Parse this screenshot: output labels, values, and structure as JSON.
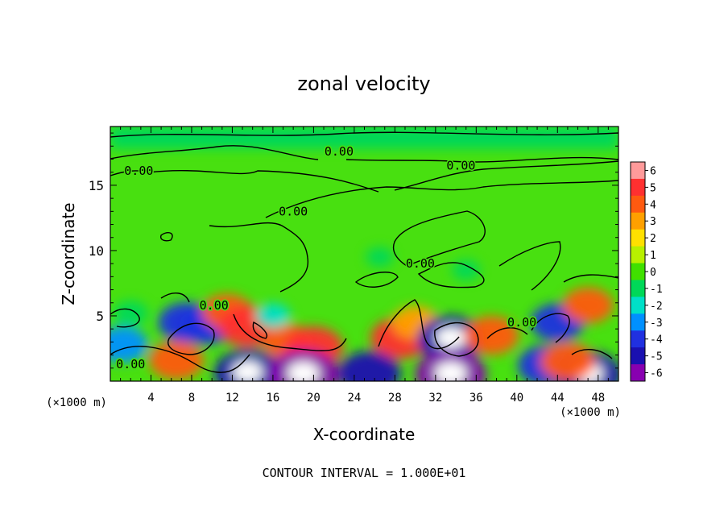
{
  "chart_data": {
    "type": "heatmap",
    "title": "zonal velocity",
    "xlabel": "X-coordinate",
    "ylabel": "Z-coordinate",
    "x_unit_left": "(×1000 m)",
    "x_unit_right": "(×1000 m)",
    "footer": "CONTOUR INTERVAL = 1.000E+01",
    "xlim": [
      0,
      50
    ],
    "ylim": [
      0,
      19.5
    ],
    "x_ticks": [
      4,
      8,
      12,
      16,
      20,
      24,
      28,
      32,
      36,
      40,
      44,
      48
    ],
    "y_ticks": [
      5,
      10,
      15
    ],
    "colorbar": {
      "levels": [
        6,
        5,
        4,
        3,
        2,
        1,
        0,
        -1,
        -2,
        -3,
        -4,
        -5,
        -6
      ],
      "colors": [
        "#ff9a9a",
        "#ff3030",
        "#ff5a10",
        "#ffa000",
        "#ffe000",
        "#b8f000",
        "#40e000",
        "#00d858",
        "#00e0c8",
        "#0090ff",
        "#2030e0",
        "#1a10b0",
        "#8800b0"
      ]
    },
    "contour_labels": [
      {
        "text": "0.00",
        "x": 2.8,
        "y": 16.1
      },
      {
        "text": "0.00",
        "x": 22.5,
        "y": 17.6
      },
      {
        "text": "0.00",
        "x": 34.5,
        "y": 16.5
      },
      {
        "text": "0.00",
        "x": 18.0,
        "y": 13.0
      },
      {
        "text": "0.00",
        "x": 30.5,
        "y": 9.0
      },
      {
        "text": "0.00",
        "x": 10.2,
        "y": 5.8
      },
      {
        "text": "0.00",
        "x": 2.0,
        "y": 1.3
      },
      {
        "text": "0.00",
        "x": 40.5,
        "y": 4.5
      }
    ],
    "features": [
      {
        "x": 1.2,
        "y": 2.8,
        "value": -3.5
      },
      {
        "x": 7.5,
        "y": 4.5,
        "value": -4.2
      },
      {
        "x": 9.5,
        "y": 4.3,
        "value": -4.0
      },
      {
        "x": 6.5,
        "y": 1.6,
        "value": 4.0
      },
      {
        "x": 11.5,
        "y": 5.3,
        "value": 3.5
      },
      {
        "x": 13.5,
        "y": 4.2,
        "value": 4.5
      },
      {
        "x": 17.5,
        "y": 3.0,
        "value": 3.5
      },
      {
        "x": 20.0,
        "y": 2.6,
        "value": 4.5
      },
      {
        "x": 13.5,
        "y": 0.6,
        "value": -5.5
      },
      {
        "x": 19.0,
        "y": 0.5,
        "value": -6.0
      },
      {
        "x": 28.5,
        "y": 3.3,
        "value": 4.5
      },
      {
        "x": 30.0,
        "y": 4.5,
        "value": 3.0
      },
      {
        "x": 33.5,
        "y": 3.2,
        "value": -5.5
      },
      {
        "x": 25.5,
        "y": 0.6,
        "value": -5.0
      },
      {
        "x": 33.5,
        "y": 0.5,
        "value": -6.0
      },
      {
        "x": 37.5,
        "y": 3.5,
        "value": 4.0
      },
      {
        "x": 44.0,
        "y": 4.5,
        "value": -3.8
      },
      {
        "x": 47.0,
        "y": 5.8,
        "value": 3.5
      },
      {
        "x": 43.0,
        "y": 1.2,
        "value": -4.5
      },
      {
        "x": 47.0,
        "y": 0.5,
        "value": -5.5
      },
      {
        "x": 45.0,
        "y": 1.5,
        "value": 4.0
      },
      {
        "x": 26.5,
        "y": 9.5,
        "value": -0.6
      },
      {
        "x": 35.0,
        "y": 8.5,
        "value": -0.7
      },
      {
        "x": 2.0,
        "y": 5.2,
        "value": -1.5
      },
      {
        "x": 16.0,
        "y": 5.0,
        "value": -1.6
      }
    ]
  }
}
